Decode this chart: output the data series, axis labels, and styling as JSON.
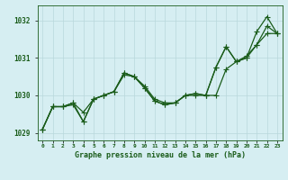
{
  "title": "",
  "xlabel": "Graphe pression niveau de la mer (hPa)",
  "background_color": "#d6eef2",
  "grid_color": "#b8d8dc",
  "line_color": "#1a5c1a",
  "x_values": [
    0,
    1,
    2,
    3,
    4,
    5,
    6,
    7,
    8,
    9,
    10,
    11,
    12,
    13,
    14,
    15,
    16,
    17,
    18,
    19,
    20,
    21,
    22,
    23
  ],
  "series1": [
    1029.1,
    1029.7,
    1029.7,
    1029.8,
    1029.55,
    1029.9,
    1030.0,
    1030.1,
    1030.55,
    1030.5,
    1030.25,
    1029.9,
    1029.8,
    1029.8,
    1030.0,
    1030.0,
    1030.0,
    1030.0,
    1030.7,
    1030.9,
    1031.0,
    1031.35,
    1031.85,
    1031.65
  ],
  "series2": [
    1029.1,
    1029.7,
    1029.7,
    1029.8,
    1029.3,
    1029.9,
    1030.0,
    1030.1,
    1030.6,
    1030.5,
    1030.2,
    1029.85,
    1029.75,
    1029.8,
    1030.0,
    1030.05,
    1030.0,
    1030.75,
    1031.3,
    1030.9,
    1031.0,
    1031.7,
    1032.1,
    1031.65
  ],
  "series3": [
    1029.1,
    1029.7,
    1029.7,
    1029.75,
    1029.3,
    1029.9,
    1030.0,
    1030.1,
    1030.6,
    1030.5,
    1030.2,
    1029.85,
    1029.75,
    1029.8,
    1030.0,
    1030.05,
    1030.0,
    1030.75,
    1031.3,
    1030.9,
    1031.05,
    1031.35,
    1031.65,
    1031.65
  ],
  "ylim": [
    1028.8,
    1032.4
  ],
  "yticks": [
    1029,
    1030,
    1031,
    1032
  ],
  "xlim": [
    -0.5,
    23.5
  ],
  "xtick_labels": [
    "0",
    "1",
    "2",
    "3",
    "4",
    "5",
    "6",
    "7",
    "8",
    "9",
    "10",
    "11",
    "12",
    "13",
    "14",
    "15",
    "16",
    "17",
    "18",
    "19",
    "20",
    "21",
    "22",
    "23"
  ],
  "line_width": 0.9,
  "marker_size": 2.0
}
